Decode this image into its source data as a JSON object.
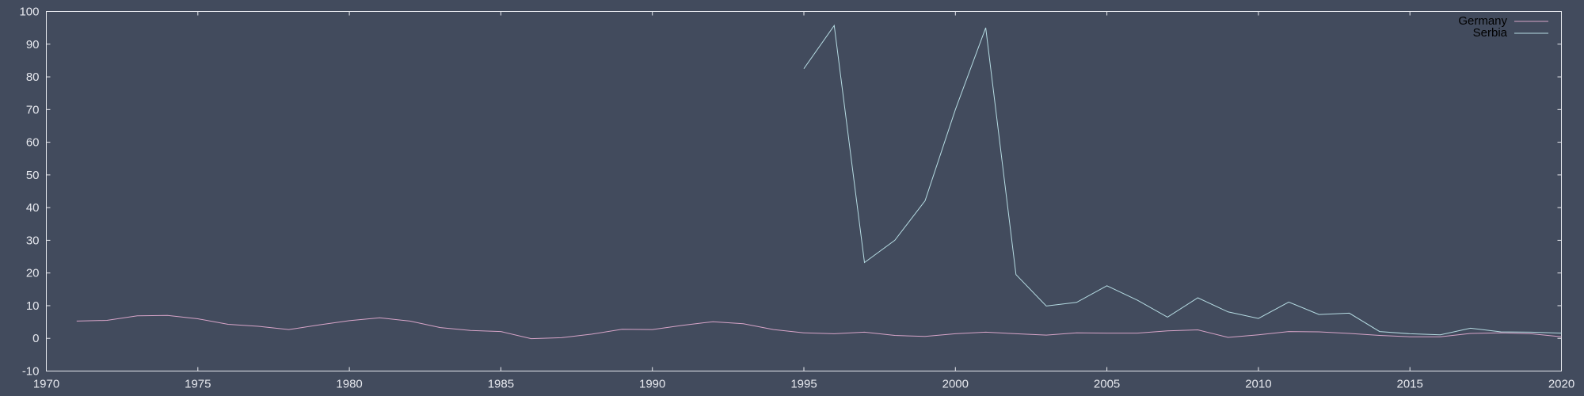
{
  "chart_data": {
    "type": "line",
    "title": "",
    "xlabel": "",
    "ylabel": "",
    "xlim": [
      1970,
      2020
    ],
    "ylim": [
      -10,
      100
    ],
    "xticks": [
      1970,
      1975,
      1980,
      1985,
      1990,
      1995,
      2000,
      2005,
      2010,
      2015,
      2020
    ],
    "yticks": [
      -10,
      0,
      10,
      20,
      30,
      40,
      50,
      60,
      70,
      80,
      90,
      100
    ],
    "grid": false,
    "legend_position": "top-right",
    "background_color": "#424b5d",
    "axis_color": "#e6e8ee",
    "series": [
      {
        "name": "Germany",
        "color": "#d7a4c8",
        "x": [
          1971,
          1972,
          1973,
          1974,
          1975,
          1976,
          1977,
          1978,
          1979,
          1980,
          1981,
          1982,
          1983,
          1984,
          1985,
          1986,
          1987,
          1988,
          1989,
          1990,
          1991,
          1992,
          1993,
          1994,
          1995,
          1996,
          1997,
          1998,
          1999,
          2000,
          2001,
          2002,
          2003,
          2004,
          2005,
          2006,
          2007,
          2008,
          2009,
          2010,
          2011,
          2012,
          2013,
          2014,
          2015,
          2016,
          2017,
          2018,
          2019,
          2020
        ],
        "values": [
          5.3,
          5.5,
          6.9,
          7.0,
          6.0,
          4.3,
          3.7,
          2.7,
          4.1,
          5.4,
          6.3,
          5.3,
          3.3,
          2.4,
          2.1,
          -0.1,
          0.2,
          1.3,
          2.8,
          2.7,
          4.0,
          5.1,
          4.5,
          2.7,
          1.7,
          1.4,
          1.9,
          0.9,
          0.6,
          1.4,
          1.9,
          1.4,
          1.0,
          1.7,
          1.6,
          1.6,
          2.3,
          2.6,
          0.3,
          1.1,
          2.1,
          2.0,
          1.5,
          0.9,
          0.5,
          0.5,
          1.5,
          1.7,
          1.4,
          0.5
        ]
      },
      {
        "name": "Serbia",
        "color": "#b5dbe2",
        "x": [
          1995,
          1996,
          1997,
          1998,
          1999,
          2000,
          2001,
          2002,
          2003,
          2004,
          2005,
          2006,
          2007,
          2008,
          2009,
          2010,
          2011,
          2012,
          2013,
          2014,
          2015,
          2016,
          2017,
          2018,
          2019,
          2020
        ],
        "values": [
          82.5,
          95.7,
          23.2,
          30.0,
          42.1,
          70.0,
          95.0,
          19.5,
          9.9,
          11.0,
          16.1,
          11.7,
          6.5,
          12.4,
          8.1,
          6.1,
          11.1,
          7.3,
          7.7,
          2.1,
          1.4,
          1.1,
          3.1,
          2.0,
          1.9,
          1.6
        ]
      }
    ]
  }
}
